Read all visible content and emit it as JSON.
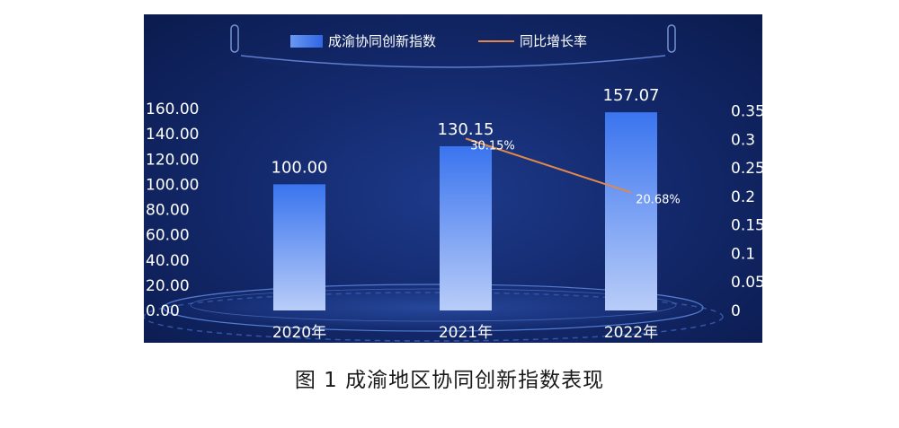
{
  "caption": "图 1  成渝地区协同创新指数表现",
  "top_crop_text": "",
  "colors": {
    "bar_top": "#3a74ef",
    "bar_bottom": "#b9cdf8",
    "line": "#e0884a",
    "text": "#ffffff"
  },
  "chart_data": {
    "type": "bar",
    "categories": [
      "2020年",
      "2021年",
      "2022年"
    ],
    "series": [
      {
        "name": "成渝协同创新指数",
        "type": "bar",
        "axis": "left",
        "values": [
          100.0,
          130.15,
          157.07
        ],
        "labels": [
          "100.00",
          "130.15",
          "157.07"
        ]
      },
      {
        "name": "同比增长率",
        "type": "line",
        "axis": "right",
        "values": [
          null,
          0.3015,
          0.2068
        ],
        "labels": [
          "",
          "30.15%",
          "20.68%"
        ]
      }
    ],
    "y_left": {
      "min": 0,
      "max": 160,
      "ticks": [
        "0.00",
        "20.00",
        "40.00",
        "60.00",
        "80.00",
        "100.00",
        "120.00",
        "140.00",
        "160.00"
      ]
    },
    "y_right": {
      "min": 0,
      "max": 0.35,
      "ticks": [
        "0",
        "0.05",
        "0.1",
        "0.15",
        "0.2",
        "0.25",
        "0.3",
        "0.35"
      ]
    },
    "legend": "top-center",
    "grid": false
  }
}
